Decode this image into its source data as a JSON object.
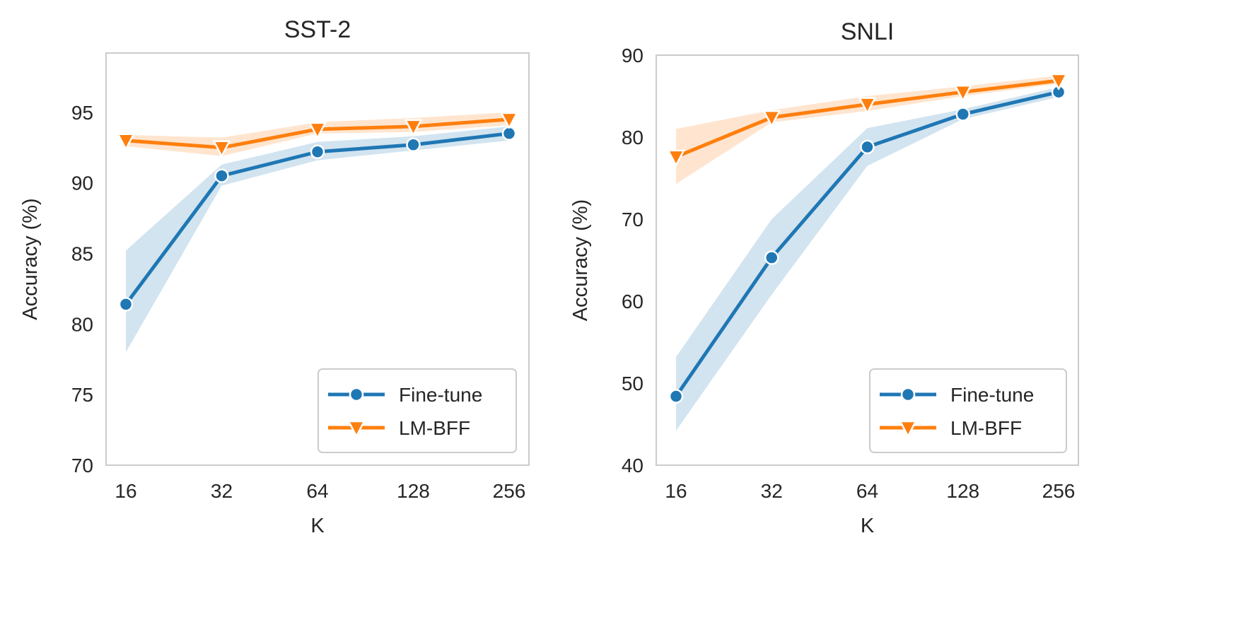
{
  "chart_data": [
    {
      "type": "line",
      "title": "SST-2",
      "xlabel": "K",
      "ylabel": "Accuracy (%)",
      "categories": [
        "16",
        "32",
        "64",
        "128",
        "256"
      ],
      "ylim": [
        70,
        99.2
      ],
      "yticks": [
        70,
        75,
        80,
        85,
        90,
        95
      ],
      "grid": false,
      "legend_position": "bottom-right",
      "series": [
        {
          "name": "Fine-tune",
          "color": "#1f77b4",
          "marker": "circle",
          "values": [
            81.4,
            90.5,
            92.2,
            92.7,
            93.5
          ],
          "lower": [
            78.0,
            89.8,
            91.6,
            92.3,
            93.0
          ],
          "upper": [
            85.2,
            91.3,
            92.9,
            93.3,
            94.0
          ]
        },
        {
          "name": "LM-BFF",
          "color": "#ff7f0e",
          "marker": "triangle-down",
          "values": [
            93.0,
            92.5,
            93.8,
            94.0,
            94.5
          ],
          "lower": [
            92.6,
            91.9,
            93.5,
            93.6,
            94.1
          ],
          "upper": [
            93.4,
            93.2,
            94.3,
            94.6,
            95.0
          ]
        }
      ]
    },
    {
      "type": "line",
      "title": "SNLI",
      "xlabel": "K",
      "ylabel": "Accuracy (%)",
      "categories": [
        "16",
        "32",
        "64",
        "128",
        "256"
      ],
      "ylim": [
        40,
        90
      ],
      "yticks": [
        40,
        50,
        60,
        70,
        80,
        90
      ],
      "grid": false,
      "legend_position": "bottom-right",
      "series": [
        {
          "name": "Fine-tune",
          "color": "#1f77b4",
          "marker": "circle",
          "values": [
            48.4,
            65.3,
            78.8,
            82.8,
            85.5
          ],
          "lower": [
            44.2,
            60.8,
            76.5,
            82.2,
            84.9
          ],
          "upper": [
            53.2,
            70.0,
            81.1,
            83.4,
            86.1
          ]
        },
        {
          "name": "LM-BFF",
          "color": "#ff7f0e",
          "marker": "triangle-down",
          "values": [
            77.6,
            82.4,
            84.0,
            85.5,
            86.9
          ],
          "lower": [
            74.3,
            81.8,
            83.2,
            85.0,
            86.5
          ],
          "upper": [
            81.0,
            83.3,
            85.0,
            86.2,
            87.5
          ]
        }
      ]
    }
  ]
}
